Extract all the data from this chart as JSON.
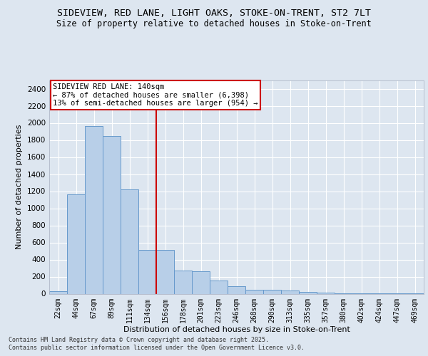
{
  "title_line1": "SIDEVIEW, RED LANE, LIGHT OAKS, STOKE-ON-TRENT, ST2 7LT",
  "title_line2": "Size of property relative to detached houses in Stoke-on-Trent",
  "xlabel": "Distribution of detached houses by size in Stoke-on-Trent",
  "ylabel": "Number of detached properties",
  "categories": [
    "22sqm",
    "44sqm",
    "67sqm",
    "89sqm",
    "111sqm",
    "134sqm",
    "156sqm",
    "178sqm",
    "201sqm",
    "223sqm",
    "246sqm",
    "268sqm",
    "290sqm",
    "313sqm",
    "335sqm",
    "357sqm",
    "380sqm",
    "402sqm",
    "424sqm",
    "447sqm",
    "469sqm"
  ],
  "values": [
    30,
    1160,
    1960,
    1850,
    1220,
    510,
    510,
    270,
    265,
    155,
    90,
    50,
    45,
    40,
    20,
    15,
    5,
    5,
    5,
    5,
    5
  ],
  "bar_color": "#b8cfe8",
  "bar_edge_color": "#6699cc",
  "annotation_box_color": "#cc0000",
  "annotation_text_line1": "SIDEVIEW RED LANE: 140sqm",
  "annotation_text_line2": "← 87% of detached houses are smaller (6,398)",
  "annotation_text_line3": "13% of semi-detached houses are larger (954) →",
  "vline_x_index": 5.5,
  "vline_color": "#cc0000",
  "ylim": [
    0,
    2500
  ],
  "yticks": [
    0,
    200,
    400,
    600,
    800,
    1000,
    1200,
    1400,
    1600,
    1800,
    2000,
    2200,
    2400
  ],
  "background_color": "#dde6f0",
  "plot_background": "#dde6f0",
  "grid_color": "#ffffff",
  "footer_line1": "Contains HM Land Registry data © Crown copyright and database right 2025.",
  "footer_line2": "Contains public sector information licensed under the Open Government Licence v3.0.",
  "title_fontsize": 9.5,
  "subtitle_fontsize": 8.5,
  "axis_label_fontsize": 8,
  "tick_fontsize": 7.5,
  "annotation_fontsize": 7.5,
  "footer_fontsize": 6
}
